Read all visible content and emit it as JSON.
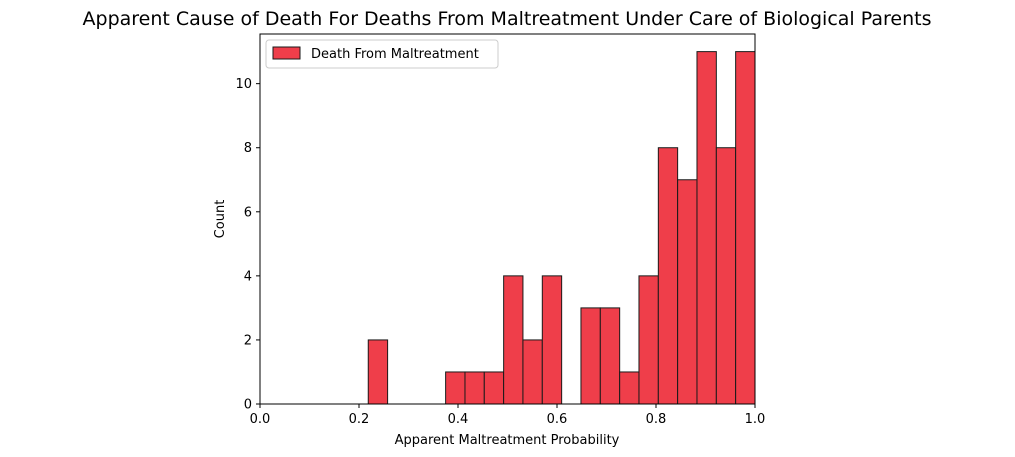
{
  "chart_data": {
    "type": "bar",
    "title": "Apparent Cause of Death For Deaths From Maltreatment Under Care of Biological Parents",
    "xlabel": "Apparent Maltreatment Probability",
    "ylabel": "Count",
    "xlim": [
      0.0,
      1.0
    ],
    "ylim": [
      0,
      11.55
    ],
    "xticks": [
      "0.0",
      "0.2",
      "0.4",
      "0.6",
      "0.8",
      "1.0"
    ],
    "yticks": [
      "0",
      "2",
      "4",
      "6",
      "8",
      "10"
    ],
    "xtick_values": [
      0.0,
      0.2,
      0.4,
      0.6,
      0.8,
      1.0
    ],
    "ytick_values": [
      0,
      2,
      4,
      6,
      8,
      10
    ],
    "bin_edges": [
      0.2187,
      0.2578,
      0.2969,
      0.3359,
      0.375,
      0.4141,
      0.4531,
      0.4922,
      0.5312,
      0.5703,
      0.6094,
      0.6484,
      0.6875,
      0.7266,
      0.7656,
      0.8047,
      0.8437,
      0.8828,
      0.9219,
      0.9609,
      1.0
    ],
    "values": [
      2,
      0,
      0,
      0,
      1,
      1,
      1,
      4,
      2,
      4,
      0,
      3,
      3,
      1,
      4,
      8,
      7,
      11,
      8,
      11
    ],
    "series": [
      {
        "name": "Death From Maltreatment",
        "color": "#EF3E4A",
        "edge": "#1a1a1a"
      }
    ],
    "legend": {
      "position": "top-left",
      "label": "Death From Maltreatment"
    },
    "grid": false
  }
}
